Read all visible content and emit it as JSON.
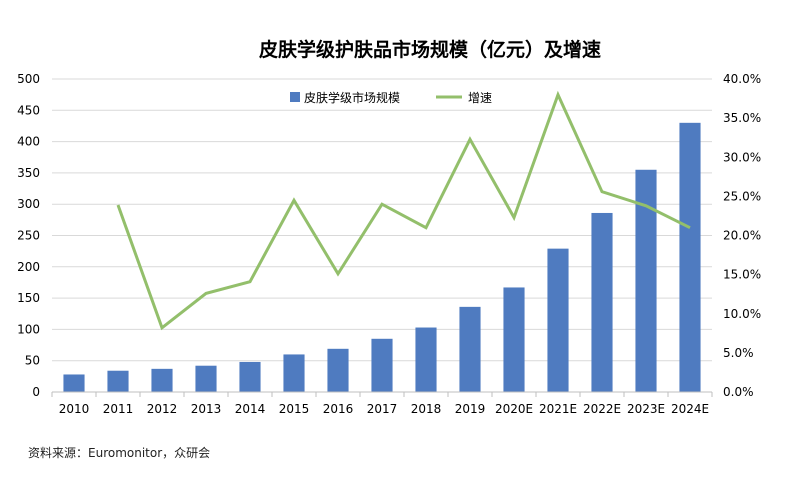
{
  "chart_data": {
    "type": "bar",
    "title": "皮肤学级护肤品市场规模（亿元）及增速",
    "categories": [
      "2010",
      "2011",
      "2012",
      "2013",
      "2014",
      "2015",
      "2016",
      "2017",
      "2018",
      "2019",
      "2020E",
      "2021E",
      "2022E",
      "2023E",
      "2024E"
    ],
    "series": [
      {
        "name": "皮肤学级市场规模",
        "type": "bar",
        "axis": "left",
        "color": "#4f7bc0",
        "values": [
          28,
          34,
          37,
          42,
          48,
          60,
          69,
          85,
          103,
          136,
          167,
          229,
          286,
          355,
          430
        ]
      },
      {
        "name": "增速",
        "type": "line",
        "axis": "right",
        "color": "#93bf6b",
        "values": [
          null,
          23.9,
          8.2,
          12.6,
          14.1,
          24.5,
          15.1,
          24.0,
          21.0,
          32.3,
          22.3,
          38.0,
          25.6,
          23.8,
          21.0
        ]
      }
    ],
    "y_left": {
      "min": 0,
      "max": 500,
      "step": 50,
      "tick_labels": [
        "0",
        "50",
        "100",
        "150",
        "200",
        "250",
        "300",
        "350",
        "400",
        "450",
        "500"
      ]
    },
    "y_right": {
      "min": 0,
      "max": 40,
      "step": 5,
      "tick_labels": [
        "0.0%",
        "5.0%",
        "10.0%",
        "15.0%",
        "20.0%",
        "25.0%",
        "30.0%",
        "35.0%",
        "40.0%"
      ]
    },
    "grid": true,
    "legend_position": "top-center",
    "gridline_color": "#d9d9d9"
  },
  "source_note": "资料来源：Euromonitor，众研会"
}
